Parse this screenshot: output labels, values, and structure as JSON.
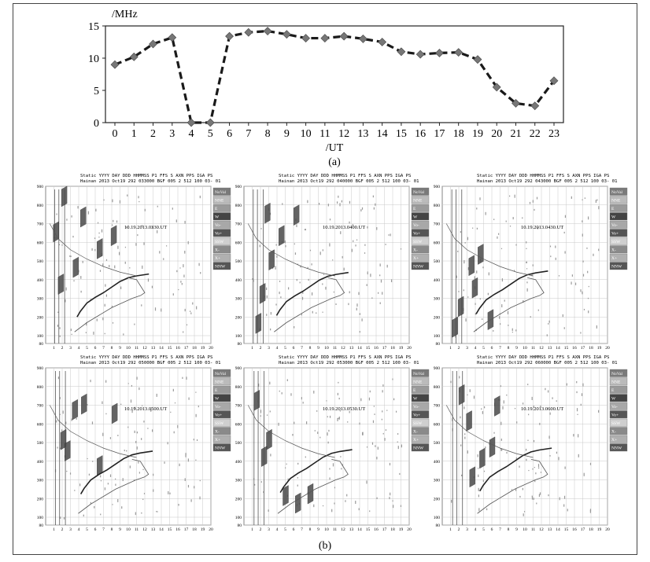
{
  "figure": {
    "panel_a_label": "(a)",
    "panel_b_label": "(b)"
  },
  "chart_data": [
    {
      "type": "line",
      "ylabel": "/MHz",
      "xlabel": "/UT",
      "x": [
        0,
        1,
        2,
        3,
        4,
        5,
        6,
        7,
        8,
        9,
        10,
        11,
        12,
        13,
        14,
        15,
        16,
        17,
        18,
        19,
        20,
        21,
        22,
        23
      ],
      "series": [
        {
          "values": [
            9.0,
            10.2,
            12.2,
            13.2,
            0,
            0,
            13.4,
            14.0,
            14.2,
            13.7,
            13.1,
            13.1,
            13.4,
            13.0,
            12.5,
            11.0,
            10.6,
            10.8,
            10.9,
            9.8,
            5.5,
            3.0,
            2.6,
            6.5
          ]
        }
      ],
      "ylim": [
        0,
        15
      ],
      "yticks": [
        0,
        5,
        10,
        15
      ],
      "grid": false,
      "line_style": "dashed",
      "line_color": "#1a1a1a",
      "marker_color": "#777777"
    },
    {
      "type": "ionogram-grid",
      "header_line1": "Static YYYY DAY   DDD HHMMSS P1  FFS S AXN PPS IGA PS",
      "legend": [
        "NoVal",
        "NNE",
        "E",
        "W",
        "Vo-",
        "Vo+",
        "SSW",
        "X-",
        "X+",
        "NNW"
      ],
      "yticks": [
        80,
        100,
        200,
        300,
        400,
        500,
        600,
        700,
        800,
        900
      ],
      "xticks": [
        1,
        2,
        3,
        4,
        5,
        6,
        7,
        8,
        9,
        10,
        11,
        12,
        13,
        14,
        15,
        16,
        17,
        18,
        19,
        20
      ],
      "panels": [
        {
          "header_line2": "Hainan 2013 Oct19 292 033000 BGF 005 2 512 100 03- 01",
          "label": "10.19.2013.0330.UT"
        },
        {
          "header_line2": "Hainan 2013 Oct19 292 040000 BGF 005 2 512 100 03- 01",
          "label": "10.19.2013.0400.UT"
        },
        {
          "header_line2": "Hainan 2013 Oct19 292 043000 BGF 005 2 512 100 03- 01",
          "label": "10.19.2013.0430.UT"
        },
        {
          "header_line2": "Hainan 2013 Oct19 292 050000 BGF 005 2 512 100 03- 01",
          "label": "10.19.2013.0500.UT"
        },
        {
          "header_line2": "Hainan 2013 Oct19 292 053000 BGF 005 2 512 100 03- 01",
          "label": "10.19.2013.0530.UT"
        },
        {
          "header_line2": "Hainan 2013 Oct19 292 060000 BGF 005 2 512 100 03- 01",
          "label": "10.19.2013.0600.UT"
        }
      ]
    }
  ]
}
